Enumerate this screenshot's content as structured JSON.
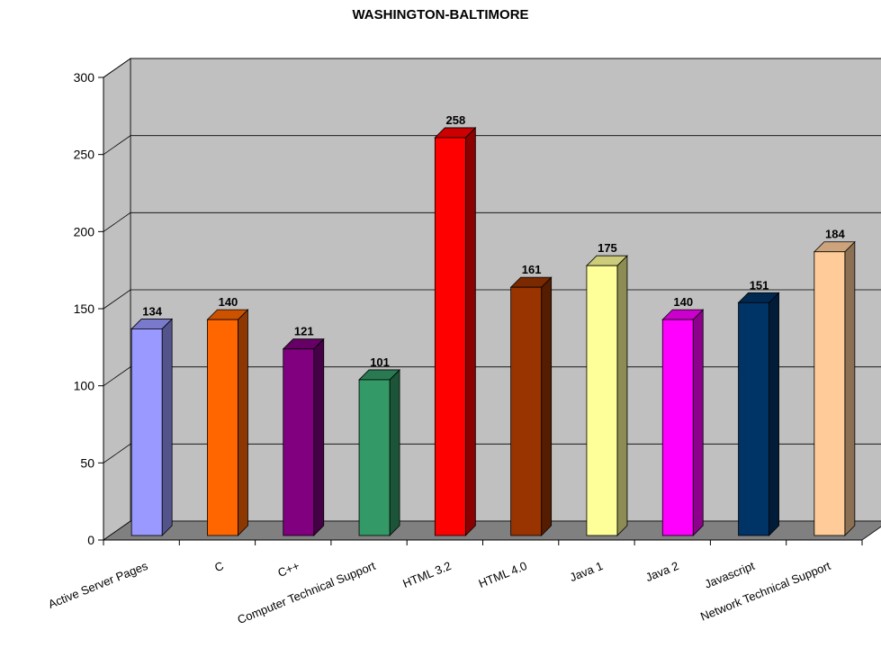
{
  "chart_data": {
    "type": "bar",
    "title": "WASHINGTON-BALTIMORE",
    "xlabel": "",
    "ylabel": "",
    "ylim": [
      0,
      300
    ],
    "yticks": [
      0,
      50,
      100,
      150,
      200,
      250,
      300
    ],
    "grid": true,
    "legend": "none",
    "categories": [
      "Active Server Pages",
      "C",
      "C++",
      "Computer Technical Support",
      "HTML 3.2",
      "HTML 4.0",
      "Java 1",
      "Java 2",
      "Javascript",
      "Network Technical Support"
    ],
    "values": [
      134,
      140,
      121,
      101,
      258,
      161,
      175,
      140,
      151,
      184
    ],
    "colors": [
      "#9999ff",
      "#ff6600",
      "#800080",
      "#339966",
      "#ff0000",
      "#993300",
      "#ffff99",
      "#ff00ff",
      "#003366",
      "#ffcc99"
    ],
    "background_colors": {
      "wall": "#c0c0c0",
      "floor": "#808080"
    }
  }
}
